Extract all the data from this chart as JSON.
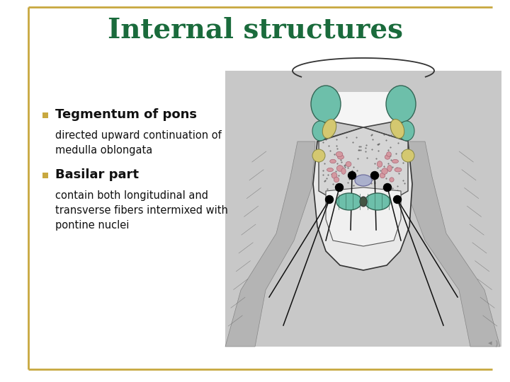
{
  "title": "Internal structures",
  "title_color": "#1a6b3c",
  "title_fontsize": 28,
  "background_color": "#ffffff",
  "border_color": "#c8a840",
  "bullet_color": "#c8a840",
  "bullet1_bold": "Tegmentum of pons",
  "bullet1_text": "directed upward continuation of\nmedulla oblongata",
  "bullet2_bold": "Basilar part",
  "bullet2_text": "contain both longitudinal and\ntransverse fibers intermixed with\npontine nuclei",
  "text_color": "#111111",
  "text_fontsize": 11,
  "bold_fontsize": 13,
  "image_bg": "#c8c8c8",
  "teal_color": "#6dbfaa",
  "yellow_color": "#d4c870",
  "blue_color": "#aab0cc",
  "pink_color": "#d499a0"
}
